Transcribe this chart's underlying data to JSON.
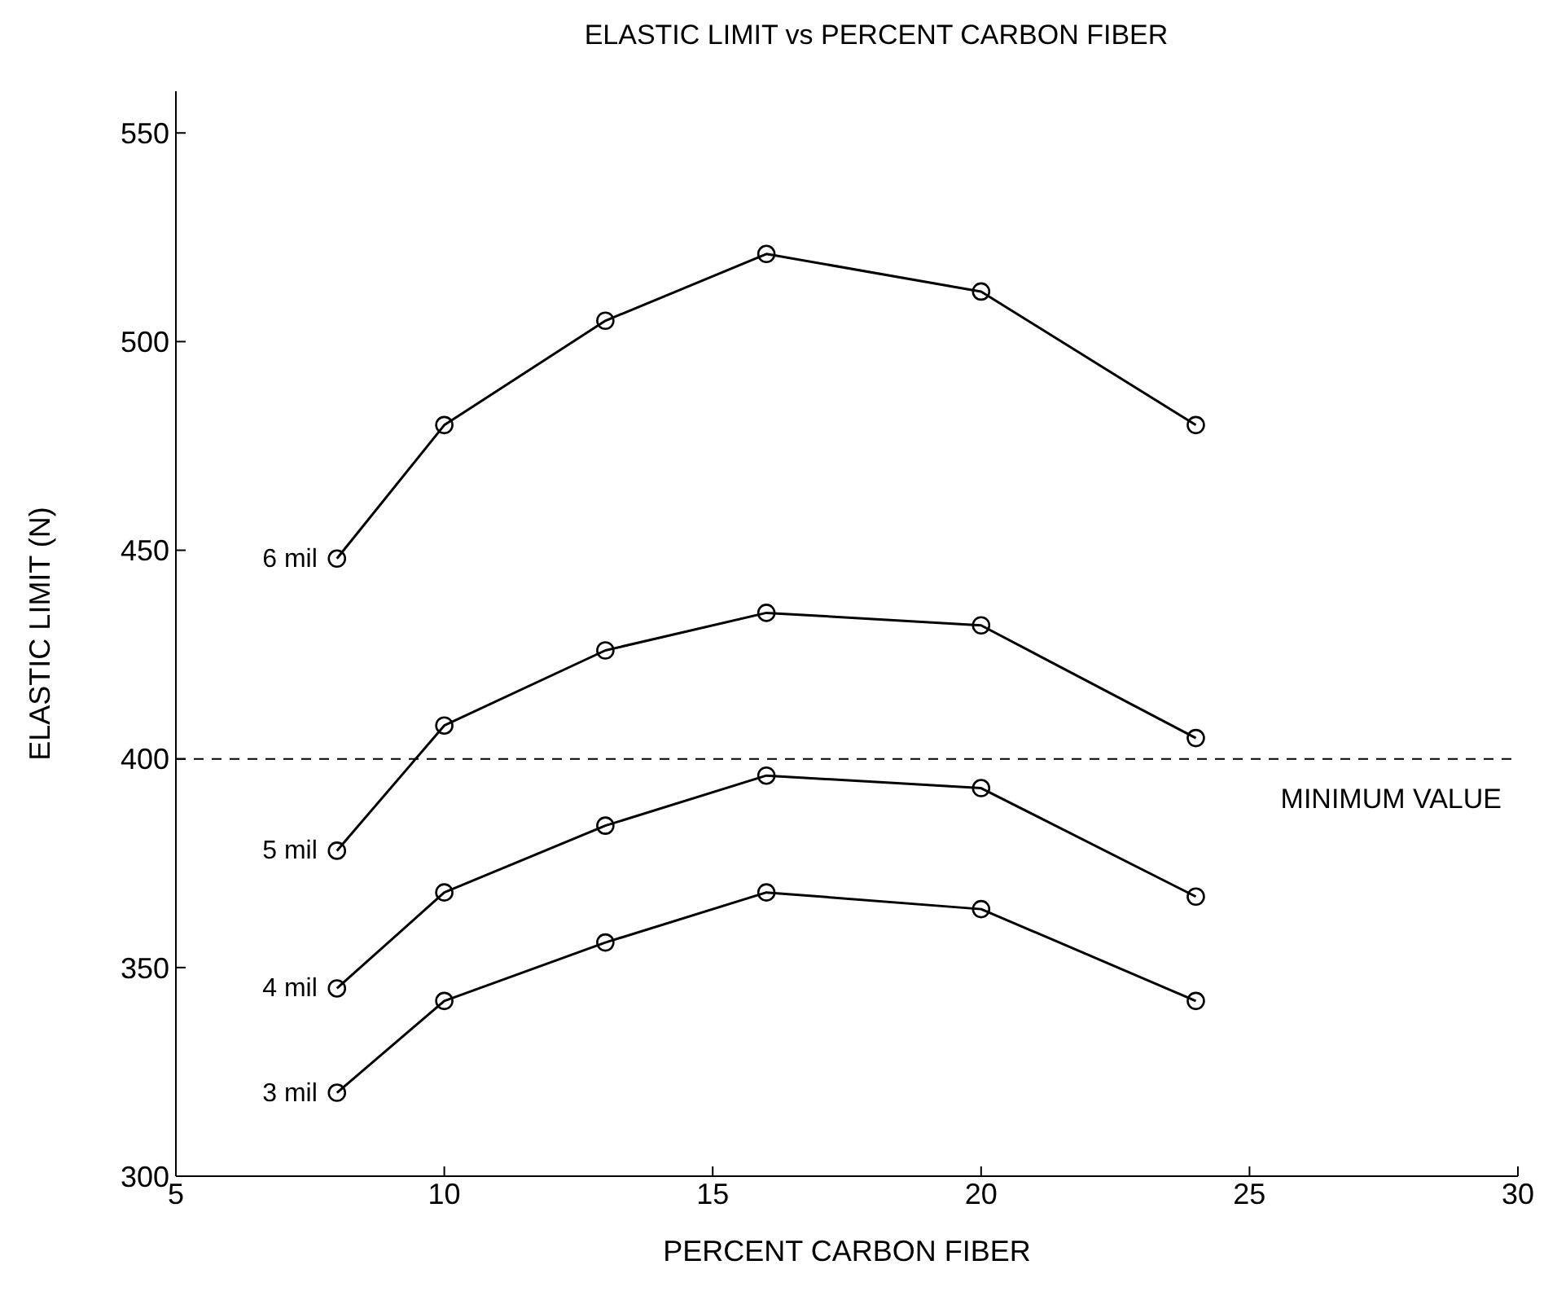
{
  "chart_data": {
    "type": "line",
    "title": "ELASTIC LIMIT vs  PERCENT CARBON FIBER",
    "xlabel": "PERCENT CARBON FIBER",
    "ylabel": "ELASTIC LIMIT (N)",
    "x": [
      8,
      10,
      13,
      16,
      20,
      24
    ],
    "series": [
      {
        "name": "6 mil",
        "color": "#000000",
        "values": [
          448,
          480,
          505,
          521,
          512,
          480
        ]
      },
      {
        "name": "5 mil",
        "color": "#000000",
        "values": [
          378,
          408,
          426,
          435,
          432,
          405
        ]
      },
      {
        "name": "4 mil",
        "color": "#000000",
        "values": [
          345,
          368,
          384,
          396,
          393,
          367
        ]
      },
      {
        "name": "3 mil",
        "color": "#000000",
        "values": [
          320,
          342,
          356,
          368,
          364,
          342
        ]
      }
    ],
    "xlim": [
      5,
      30
    ],
    "xticks": [
      5,
      10,
      15,
      20,
      25,
      30
    ],
    "ylim": [
      300,
      560
    ],
    "yticks": [
      300,
      350,
      400,
      450,
      500,
      550
    ],
    "ref_lines": [
      {
        "axis": "y",
        "value": 400,
        "label": "MINIMUM VALUE",
        "color": "#000000",
        "line_style": "dashed"
      }
    ],
    "grid": false,
    "legend": false,
    "marker": "circle",
    "line_style": "solid"
  }
}
